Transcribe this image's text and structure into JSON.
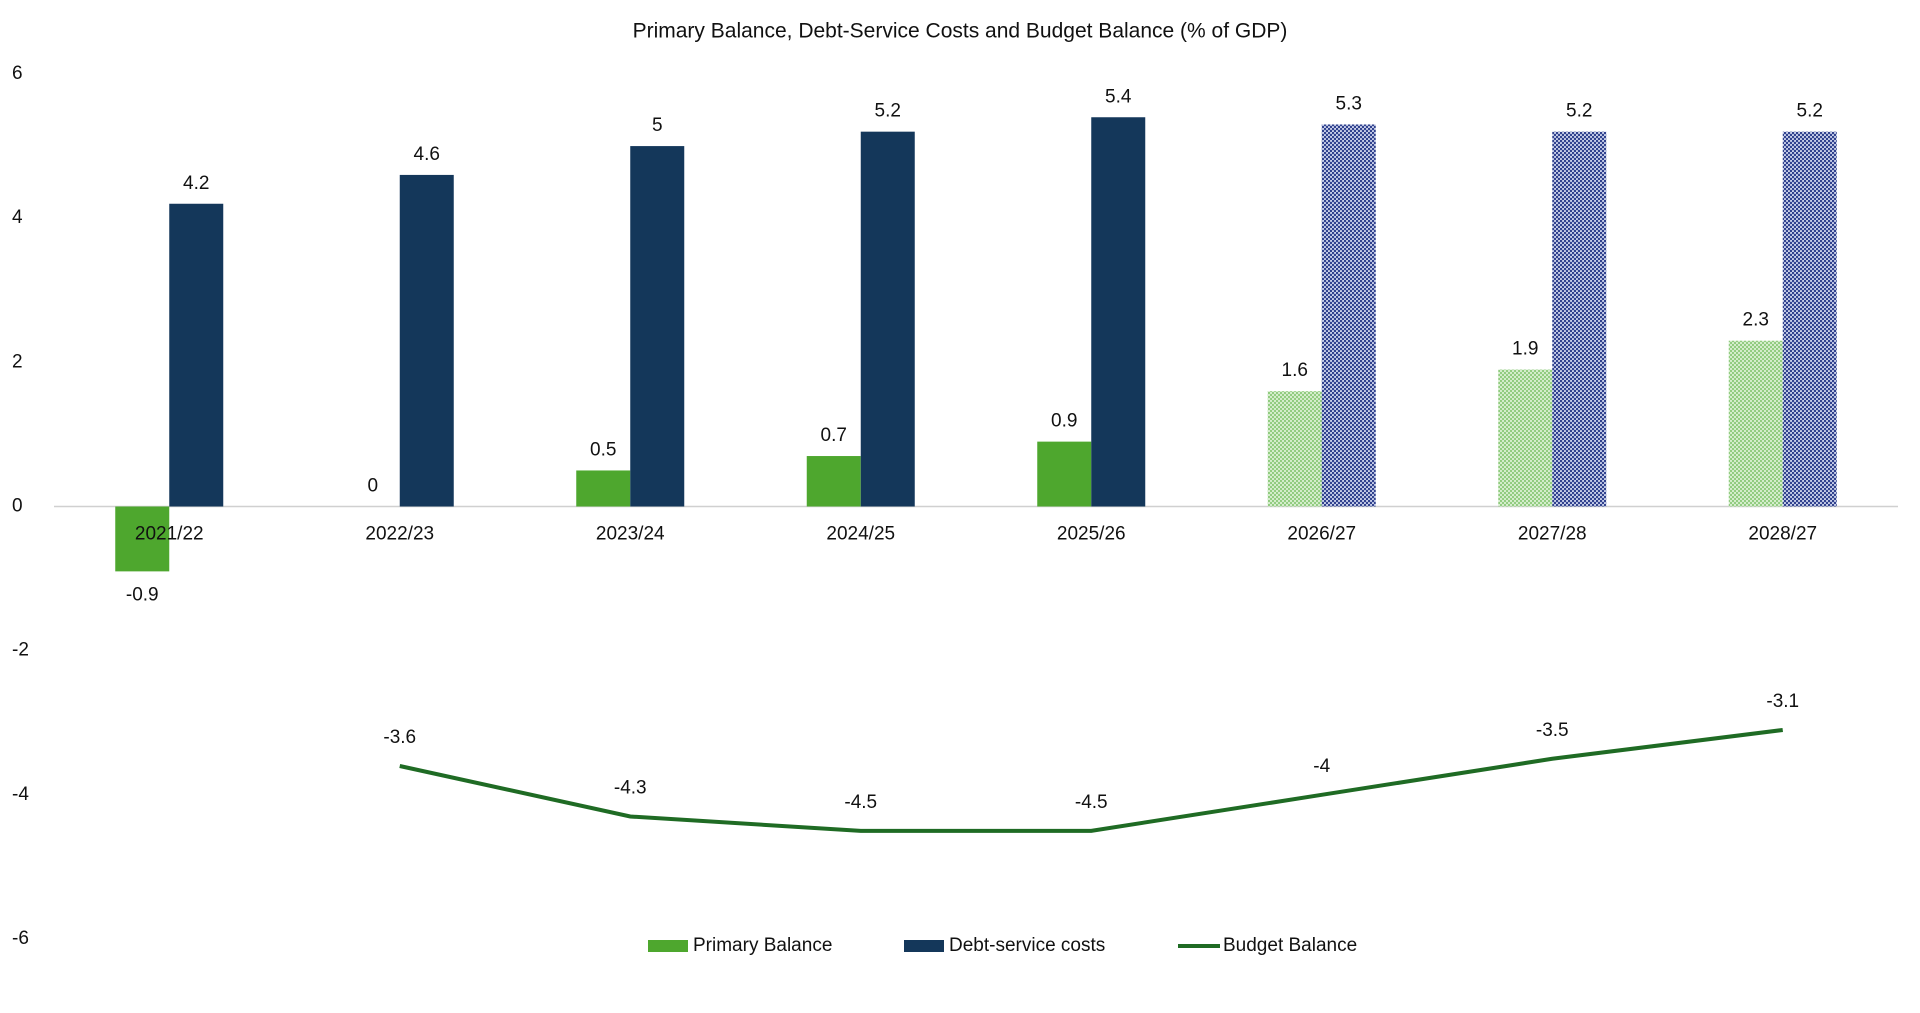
{
  "chart_data": {
    "type": "bar_line",
    "title": "Primary Balance, Debt-Service Costs and Budget Balance (% of GDP)",
    "categories": [
      "2021/22",
      "2022/23",
      "2023/24",
      "2024/25",
      "2025/26",
      "2026/27",
      "2027/28",
      "2028/27"
    ],
    "series": [
      {
        "name": "Primary Balance",
        "type": "bar",
        "color": "#4ea72e",
        "projected_color": "#a9d99b",
        "values": [
          -0.9,
          0,
          0.5,
          0.7,
          0.9,
          1.6,
          1.9,
          2.3
        ]
      },
      {
        "name": "Debt-service costs",
        "type": "bar",
        "color": "#14375a",
        "projected_color": "#3b4f9c",
        "values": [
          4.2,
          4.6,
          5,
          5.2,
          5.4,
          5.3,
          5.2,
          5.2
        ]
      },
      {
        "name": "Budget Balance",
        "type": "line",
        "color": "#1f6b24",
        "values": [
          null,
          -3.6,
          -4.3,
          -4.5,
          -4.5,
          -4,
          -3.5,
          -3.1
        ]
      }
    ],
    "projected_from_index": 5,
    "ylim": [
      -6,
      6
    ],
    "yticks": [
      -6,
      -4,
      -2,
      0,
      2,
      4,
      6
    ],
    "grid": false,
    "legend": "bottom"
  }
}
